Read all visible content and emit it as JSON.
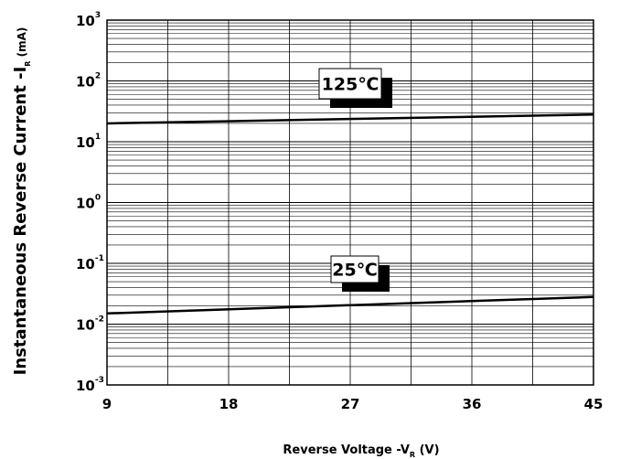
{
  "chart_data": {
    "type": "line",
    "xlabel": {
      "main": "Reverse  Voltage -V",
      "sub": "R",
      "tail": " (V)"
    },
    "ylabel": {
      "main": "Instantaneous Reverse Current -I",
      "sub": "R",
      "tail": " (mA)"
    },
    "x_ticks": [
      "9",
      "18",
      "27",
      "36",
      "45"
    ],
    "y_ticks": [
      {
        "base": "10",
        "exp": "-3"
      },
      {
        "base": "10",
        "exp": "-2"
      },
      {
        "base": "10",
        "exp": "-1"
      },
      {
        "base": "10",
        "exp": "0"
      },
      {
        "base": "10",
        "exp": "1"
      },
      {
        "base": "10",
        "exp": "2"
      },
      {
        "base": "10",
        "exp": "3"
      }
    ],
    "xlim": [
      9,
      45
    ],
    "ylim": [
      0.001,
      1000
    ],
    "y_scale": "log",
    "grid": true,
    "series": [
      {
        "name": "125℃",
        "x": [
          9,
          45
        ],
        "y": [
          20,
          28
        ]
      },
      {
        "name": "25℃",
        "x": [
          9,
          45
        ],
        "y": [
          0.015,
          0.028
        ]
      }
    ]
  }
}
